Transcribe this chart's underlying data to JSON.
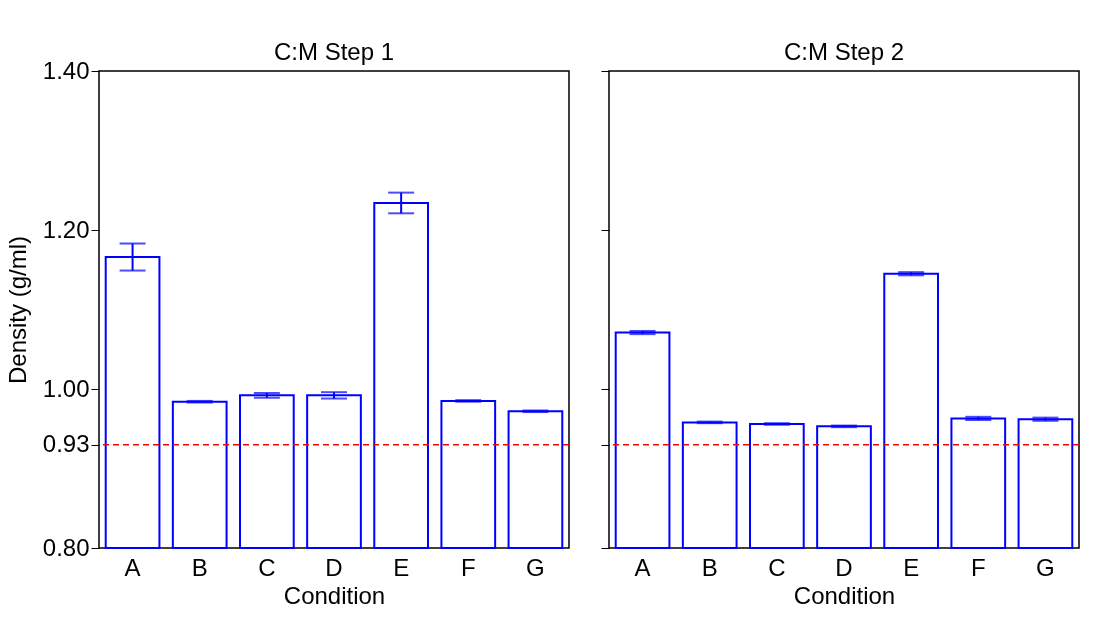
{
  "chart_data": [
    {
      "type": "bar",
      "title": "C:M Step 1",
      "xlabel": "Condition",
      "ylabel": "Density (g/ml)",
      "categories": [
        "A",
        "B",
        "C",
        "D",
        "E",
        "F",
        "G"
      ],
      "series": [
        {
          "color": "#0000ff",
          "values": [
            1.166,
            0.984,
            0.992,
            0.992,
            1.234,
            0.985,
            0.972
          ],
          "errors": [
            0.017,
            0.001,
            0.003,
            0.004,
            0.013,
            0.001,
            0.001
          ]
        }
      ],
      "ylim": [
        0.8,
        1.4
      ],
      "yticks": [
        {
          "value": 0.8,
          "label": "0.80"
        },
        {
          "value": 0.93,
          "label": "0.93"
        },
        {
          "value": 1.0,
          "label": "1.00"
        },
        {
          "value": 1.2,
          "label": "1.20"
        },
        {
          "value": 1.4,
          "label": "1.40"
        }
      ],
      "ref_lines": [
        {
          "axis": "y",
          "value": 0.93,
          "color": "#ff0000",
          "line_style": "dashed"
        }
      ]
    },
    {
      "type": "bar",
      "title": "C:M Step 2",
      "xlabel": "Condition",
      "categories": [
        "A",
        "B",
        "C",
        "D",
        "E",
        "F",
        "G"
      ],
      "series": [
        {
          "color": "#0000ff",
          "values": [
            1.071,
            0.958,
            0.956,
            0.953,
            1.145,
            0.963,
            0.962
          ],
          "errors": [
            0.002,
            0.001,
            0.001,
            0.001,
            0.002,
            0.002,
            0.002
          ]
        }
      ],
      "ylim": [
        0.8,
        1.4
      ],
      "yticks": [
        {
          "value": 0.8,
          "label": null
        },
        {
          "value": 0.93,
          "label": null
        },
        {
          "value": 1.0,
          "label": null
        },
        {
          "value": 1.2,
          "label": null
        },
        {
          "value": 1.4,
          "label": null
        }
      ],
      "tick_labels": "x",
      "ref_lines": [
        {
          "axis": "y",
          "value": 0.93,
          "color": "#ff0000",
          "line_style": "dashed"
        }
      ]
    }
  ]
}
